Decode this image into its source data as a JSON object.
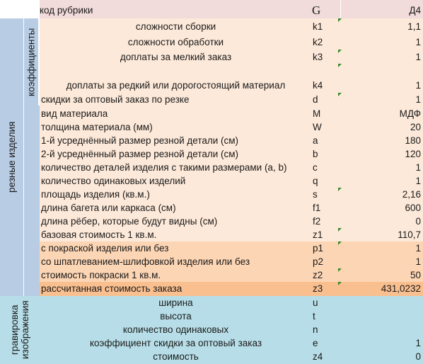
{
  "header": {
    "label": "код рубрики",
    "code": "G",
    "value": "Д4"
  },
  "groups": {
    "cut_products": "резные изделия",
    "coefficients": "коэффициенты",
    "engraving": "гравировка изображения"
  },
  "rows": [
    {
      "label": "сложности сборки",
      "code": "k1",
      "value": "1,1"
    },
    {
      "label": "сложности обработки",
      "code": "k2",
      "value": "1"
    },
    {
      "label": "доплаты за мелкий заказ",
      "code": "k3",
      "value": "1"
    },
    {
      "label": "доплаты за редкий или дорогостоящий материал",
      "code": "k4",
      "value": "1"
    },
    {
      "label": "скидки за оптовый заказ по резке",
      "code": "d",
      "value": "1"
    },
    {
      "label": "вид материала",
      "code": "M",
      "value": "МДФ"
    },
    {
      "label": "толщина материала (мм)",
      "code": "W",
      "value": "20"
    },
    {
      "label": "1-й усреднённый размер резной детали (см)",
      "code": "a",
      "value": "180"
    },
    {
      "label": "2-й усреднённый размер резной детали (см)",
      "code": "b",
      "value": "120"
    },
    {
      "label": "количество деталей изделия с такими размерами (a, b)",
      "code": "c",
      "value": "1"
    },
    {
      "label": "количество одинаковых изделий",
      "code": "q",
      "value": "1"
    },
    {
      "label": "площадь изделия (кв.м.)",
      "code": "s",
      "value": "2,16"
    },
    {
      "label": "длина багета или каркаса (см)",
      "code": "f1",
      "value": "600"
    },
    {
      "label": "длина рёбер, которые будут видны (см)",
      "code": "f2",
      "value": "0"
    },
    {
      "label": "базовая стоимость 1 кв.м.",
      "code": "z1",
      "value": "110,7"
    },
    {
      "label": "с покраской изделия или без",
      "code": "p1",
      "value": "1"
    },
    {
      "label": "со шпатлеванием-шлифовкой изделия или без",
      "code": "p2",
      "value": "1"
    },
    {
      "label": "стоимость покраски 1 кв.м.",
      "code": "z2",
      "value": "50"
    },
    {
      "label": "рассчитанная стоимость заказа",
      "code": "z3",
      "value": "431,0232"
    },
    {
      "label": "ширина",
      "code": "u",
      "value": ""
    },
    {
      "label": "высота",
      "code": "t",
      "value": ""
    },
    {
      "label": "количество одинаковых",
      "code": "n",
      "value": ""
    },
    {
      "label": "коэффициент скидки за оптовый заказ",
      "code": "e",
      "value": "1"
    },
    {
      "label": "стоимость",
      "code": "z4",
      "value": "0"
    }
  ],
  "colors": {
    "header_bg": "#f2dcdb",
    "coef_bg": "#fde9d9",
    "paint_bg": "#fcd5b4",
    "total_bg": "#fabf8f",
    "engrave_bg": "#b7dee8",
    "group_blue": "#b8cce4",
    "marker": "#3a8a2a"
  }
}
